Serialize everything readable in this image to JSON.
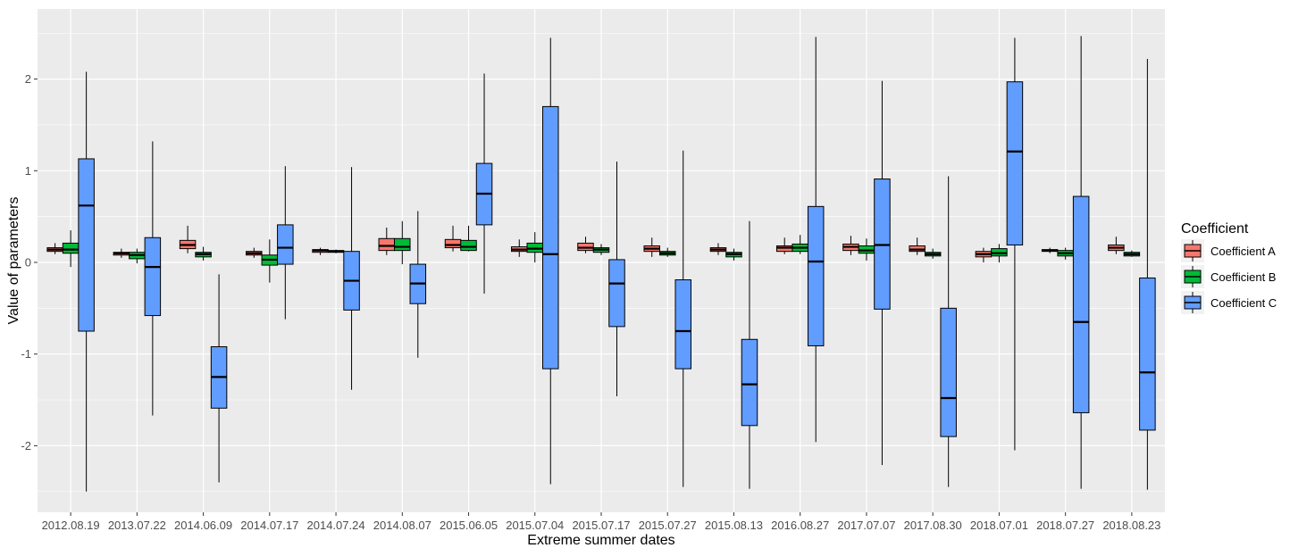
{
  "chart_data": {
    "type": "boxplot",
    "xlabel": "Extreme summer dates",
    "ylabel": "Value of parameters",
    "ylim": [
      -2.75,
      2.75
    ],
    "yticks": [
      -2,
      -1,
      0,
      1,
      2
    ],
    "ytick_labels": [
      "-2",
      "-1",
      "0",
      "1",
      "2"
    ],
    "grid": true,
    "legend": {
      "title": "Coefficient",
      "position": "right"
    },
    "categories": [
      "2012.08.19",
      "2013.07.22",
      "2014.06.09",
      "2014.07.17",
      "2014.07.24",
      "2014.08.07",
      "2015.06.05",
      "2015.07.04",
      "2015.07.17",
      "2015.07.27",
      "2015.08.13",
      "2016.08.27",
      "2017.07.07",
      "2017.08.30",
      "2018.07.01",
      "2018.07.27",
      "2018.08.23"
    ],
    "series": [
      {
        "name": "Coefficient A",
        "color": "#F8766D",
        "boxes": [
          [
            0.09,
            0.12,
            0.14,
            0.16,
            0.21
          ],
          [
            0.05,
            0.08,
            0.1,
            0.11,
            0.15
          ],
          [
            0.1,
            0.15,
            0.19,
            0.24,
            0.4
          ],
          [
            0.05,
            0.08,
            0.1,
            0.12,
            0.16
          ],
          [
            0.08,
            0.11,
            0.13,
            0.14,
            0.16
          ],
          [
            0.08,
            0.13,
            0.18,
            0.26,
            0.38
          ],
          [
            0.12,
            0.16,
            0.19,
            0.25,
            0.4
          ],
          [
            0.06,
            0.12,
            0.14,
            0.17,
            0.25
          ],
          [
            0.1,
            0.13,
            0.16,
            0.21,
            0.28
          ],
          [
            0.06,
            0.12,
            0.15,
            0.18,
            0.27
          ],
          [
            0.08,
            0.12,
            0.14,
            0.16,
            0.21
          ],
          [
            0.09,
            0.12,
            0.16,
            0.18,
            0.27
          ],
          [
            0.08,
            0.13,
            0.17,
            0.2,
            0.29
          ],
          [
            0.08,
            0.12,
            0.14,
            0.18,
            0.27
          ],
          [
            0.0,
            0.06,
            0.09,
            0.12,
            0.16
          ],
          [
            0.1,
            0.12,
            0.13,
            0.14,
            0.16
          ],
          [
            0.09,
            0.13,
            0.16,
            0.19,
            0.28
          ]
        ]
      },
      {
        "name": "Coefficient B",
        "color": "#00BA38",
        "boxes": [
          [
            -0.05,
            0.1,
            0.14,
            0.21,
            0.35
          ],
          [
            -0.01,
            0.04,
            0.08,
            0.11,
            0.15
          ],
          [
            0.02,
            0.06,
            0.09,
            0.11,
            0.17
          ],
          [
            -0.22,
            -0.03,
            0.03,
            0.08,
            0.25
          ],
          [
            0.1,
            0.11,
            0.12,
            0.13,
            0.14
          ],
          [
            -0.02,
            0.13,
            0.17,
            0.26,
            0.45
          ],
          [
            0.12,
            0.13,
            0.17,
            0.24,
            0.4
          ],
          [
            0.0,
            0.11,
            0.15,
            0.21,
            0.33
          ],
          [
            0.08,
            0.11,
            0.14,
            0.16,
            0.2
          ],
          [
            0.06,
            0.08,
            0.1,
            0.12,
            0.16
          ],
          [
            0.02,
            0.06,
            0.09,
            0.11,
            0.15
          ],
          [
            0.09,
            0.12,
            0.16,
            0.2,
            0.3
          ],
          [
            0.02,
            0.1,
            0.13,
            0.18,
            0.26
          ],
          [
            0.04,
            0.07,
            0.09,
            0.11,
            0.15
          ],
          [
            0.0,
            0.07,
            0.1,
            0.15,
            0.2
          ],
          [
            0.03,
            0.07,
            0.1,
            0.13,
            0.16
          ],
          [
            0.06,
            0.07,
            0.09,
            0.11,
            0.13
          ]
        ]
      },
      {
        "name": "Coefficient C",
        "color": "#619CFF",
        "boxes": [
          [
            -2.5,
            -0.75,
            0.62,
            1.13,
            2.08
          ],
          [
            -1.67,
            -0.58,
            -0.05,
            0.27,
            1.32
          ],
          [
            -2.4,
            -1.59,
            -1.25,
            -0.92,
            -0.13
          ],
          [
            -0.62,
            -0.02,
            0.16,
            0.41,
            1.05
          ],
          [
            -1.39,
            -0.52,
            -0.2,
            0.12,
            1.04
          ],
          [
            -1.04,
            -0.45,
            -0.23,
            -0.02,
            0.56
          ],
          [
            -0.34,
            0.41,
            0.75,
            1.08,
            2.06
          ],
          [
            -2.42,
            -1.16,
            0.09,
            1.7,
            2.45
          ],
          [
            -1.46,
            -0.7,
            -0.23,
            0.03,
            1.1
          ],
          [
            -2.45,
            -1.16,
            -0.75,
            -0.19,
            1.22
          ],
          [
            -2.47,
            -1.78,
            -1.33,
            -0.84,
            0.45
          ],
          [
            -1.96,
            -0.91,
            0.01,
            0.61,
            2.46
          ],
          [
            -2.21,
            -0.51,
            0.19,
            0.91,
            1.98
          ],
          [
            -2.45,
            -1.9,
            -1.48,
            -0.5,
            0.94
          ],
          [
            -2.05,
            0.19,
            1.21,
            1.97,
            2.45
          ],
          [
            -2.47,
            -1.64,
            -0.65,
            0.72,
            2.47
          ],
          [
            -2.48,
            -1.83,
            -1.2,
            -0.17,
            2.22
          ]
        ]
      }
    ]
  }
}
